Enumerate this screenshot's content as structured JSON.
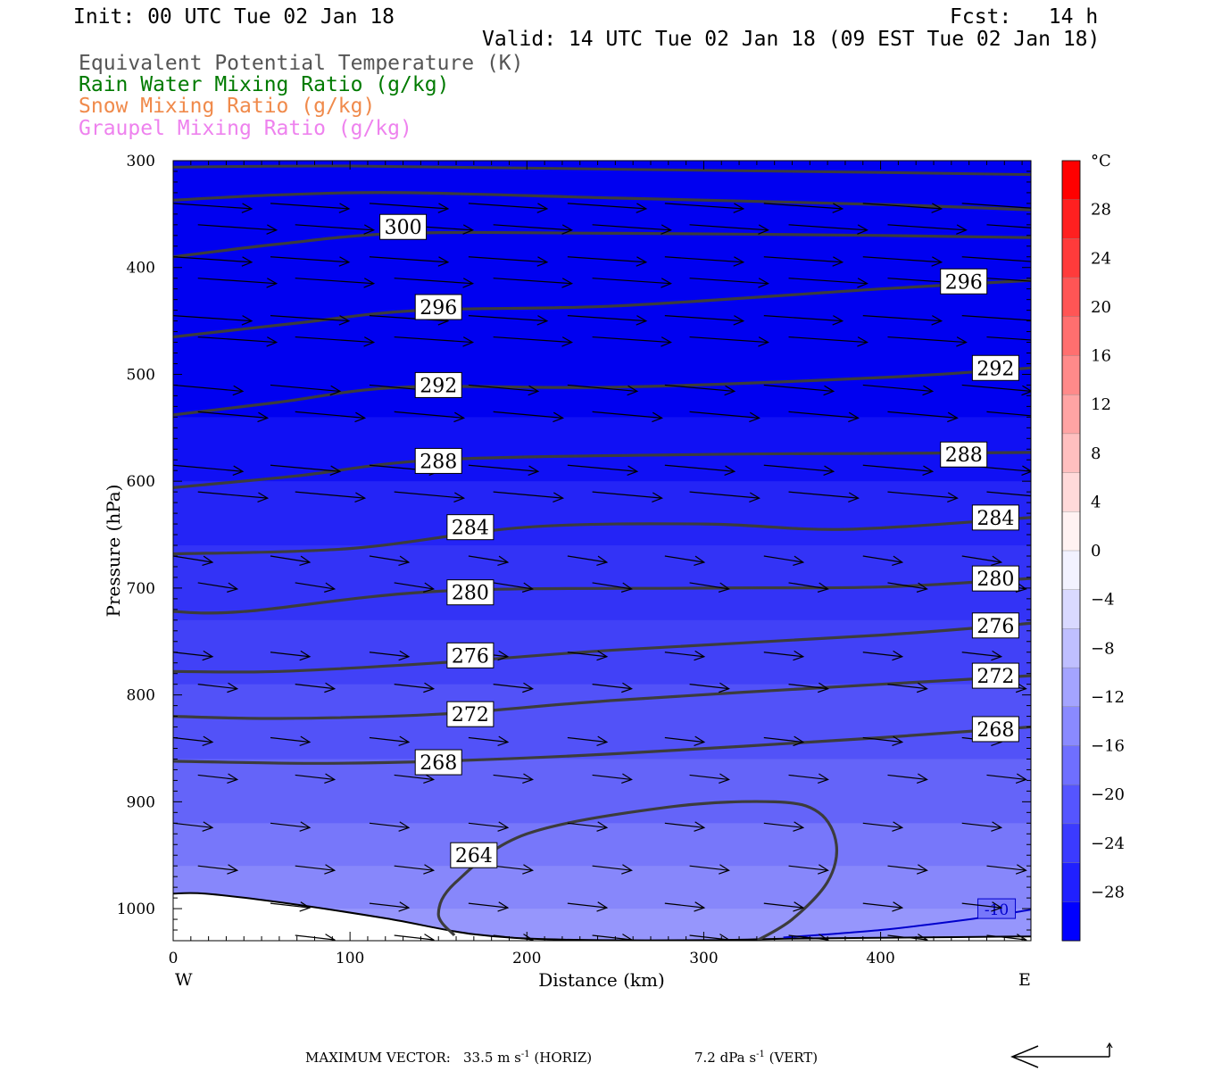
{
  "header": {
    "init": "Init: 00 UTC Tue 02 Jan 18",
    "fcst": "Fcst:   14 h",
    "valid": "Valid: 14 UTC Tue 02 Jan 18 (09 EST Tue 02 Jan 18)"
  },
  "legend": [
    {
      "text": "Equivalent Potential Temperature (K)",
      "color": "#555555"
    },
    {
      "text": "Rain Water Mixing Ratio (g/kg)",
      "color": "#007a00"
    },
    {
      "text": "Snow Mixing Ratio (g/kg)",
      "color": "#f08a4b"
    },
    {
      "text": "Graupel Mixing Ratio (g/kg)",
      "color": "#ee82ee"
    }
  ],
  "footer": {
    "max_vector_label": "MAXIMUM VECTOR:",
    "horiz_value": "33.5",
    "horiz_unit": "m s",
    "horiz_exp": "-1",
    "horiz_tag": "(HORIZ)",
    "vert_value": "7.2",
    "vert_unit": "dPa s",
    "vert_exp": "-1",
    "vert_tag": "(VERT)"
  },
  "chart_data": {
    "type": "cross-section contour",
    "title": "",
    "xlabel": "Distance (km)",
    "ylabel": "Pressure (hPa)",
    "xlim": [
      0,
      485
    ],
    "ylim": [
      1030,
      300
    ],
    "x_ticks": [
      0,
      100,
      200,
      300,
      400
    ],
    "y_ticks": [
      300,
      400,
      500,
      600,
      700,
      800,
      900,
      1000
    ],
    "x_end_labels": {
      "left": "W",
      "right": "E"
    },
    "colorbar": {
      "unit": "°C",
      "ticks": [
        28,
        24,
        20,
        16,
        12,
        8,
        4,
        0,
        -4,
        -8,
        -12,
        -16,
        -20,
        -24,
        -28
      ],
      "colors_top_to_bottom": [
        "#ff0000",
        "#ff2020",
        "#ff3b3b",
        "#ff5555",
        "#ff6f6f",
        "#ff8a8a",
        "#ffa4a4",
        "#ffbfbf",
        "#ffd9d9",
        "#fff2f2",
        "#f2f2ff",
        "#d9d9ff",
        "#bfbfff",
        "#a4a4ff",
        "#8a8aff",
        "#6f6fff",
        "#5555ff",
        "#3b3bff",
        "#2020ff",
        "#0000ff"
      ]
    },
    "temperature_bands_degC": [
      {
        "p_top": 300,
        "p_bottom": 540,
        "value": -30,
        "color": "#0000f0"
      },
      {
        "p_top": 540,
        "p_bottom": 600,
        "value": -26,
        "color": "#1010f4"
      },
      {
        "p_top": 600,
        "p_bottom": 660,
        "value": -22,
        "color": "#2424f6"
      },
      {
        "p_top": 660,
        "p_bottom": 730,
        "value": -18,
        "color": "#3333f6"
      },
      {
        "p_top": 730,
        "p_bottom": 790,
        "value": -16,
        "color": "#4141f7"
      },
      {
        "p_top": 790,
        "p_bottom": 860,
        "value": -14,
        "color": "#5252f8"
      },
      {
        "p_top": 860,
        "p_bottom": 920,
        "value": -12,
        "color": "#6464f9"
      },
      {
        "p_top": 920,
        "p_bottom": 960,
        "value": -10,
        "color": "#7777fa"
      },
      {
        "p_top": 960,
        "p_bottom": 1000,
        "value": -8,
        "color": "#8787fb"
      },
      {
        "p_top": 1000,
        "p_bottom": 1030,
        "value": -6,
        "color": "#9696fc"
      }
    ],
    "temperature_contour_label": "-10",
    "theta_e_contours": [
      {
        "label": "300",
        "points": [
          [
            0,
            337
          ],
          [
            60,
            332
          ],
          [
            130,
            330
          ],
          [
            250,
            335
          ],
          [
            400,
            341
          ],
          [
            485,
            346
          ]
        ]
      },
      {
        "label": "300",
        "points": [
          [
            0,
            390
          ],
          [
            60,
            378
          ],
          [
            130,
            368
          ],
          [
            250,
            368
          ],
          [
            400,
            370
          ],
          [
            485,
            372
          ]
        ]
      },
      {
        "label": "296",
        "points": [
          [
            0,
            465
          ],
          [
            70,
            452
          ],
          [
            140,
            440
          ],
          [
            250,
            436
          ],
          [
            400,
            420
          ],
          [
            485,
            412
          ]
        ]
      },
      {
        "label": "292",
        "points": [
          [
            0,
            538
          ],
          [
            60,
            526
          ],
          [
            130,
            512
          ],
          [
            250,
            512
          ],
          [
            400,
            503
          ],
          [
            485,
            494
          ]
        ]
      },
      {
        "label": "288",
        "points": [
          [
            0,
            606
          ],
          [
            70,
            595
          ],
          [
            150,
            580
          ],
          [
            300,
            575
          ],
          [
            400,
            574
          ],
          [
            485,
            573
          ]
        ]
      },
      {
        "label": "284",
        "points": [
          [
            0,
            668
          ],
          [
            100,
            663
          ],
          [
            200,
            643
          ],
          [
            300,
            640
          ],
          [
            380,
            645
          ],
          [
            485,
            634
          ]
        ]
      },
      {
        "label": "280",
        "points": [
          [
            0,
            722
          ],
          [
            40,
            722
          ],
          [
            150,
            703
          ],
          [
            300,
            700
          ],
          [
            400,
            699
          ],
          [
            485,
            691
          ]
        ]
      },
      {
        "label": "276",
        "points": [
          [
            0,
            778
          ],
          [
            60,
            778
          ],
          [
            150,
            770
          ],
          [
            250,
            758
          ],
          [
            400,
            744
          ],
          [
            485,
            733
          ]
        ]
      },
      {
        "label": "272",
        "points": [
          [
            0,
            820
          ],
          [
            60,
            822
          ],
          [
            150,
            818
          ],
          [
            250,
            805
          ],
          [
            400,
            790
          ],
          [
            485,
            782
          ]
        ]
      },
      {
        "label": "268",
        "points": [
          [
            0,
            862
          ],
          [
            80,
            864
          ],
          [
            150,
            862
          ],
          [
            250,
            855
          ],
          [
            400,
            840
          ],
          [
            485,
            830
          ]
        ]
      },
      {
        "label": "264",
        "points": [
          [
            159,
            1025
          ],
          [
            150,
            1005
          ],
          [
            160,
            975
          ],
          [
            200,
            930
          ],
          [
            280,
            905
          ],
          [
            340,
            900
          ],
          [
            365,
            910
          ],
          [
            375,
            940
          ],
          [
            370,
            975
          ],
          [
            350,
            1010
          ],
          [
            330,
            1030
          ]
        ]
      }
    ],
    "theta_e_labels": [
      {
        "text": "300",
        "x": 130,
        "p": 362
      },
      {
        "text": "296",
        "x": 150,
        "p": 437
      },
      {
        "text": "296",
        "x": 447,
        "p": 413
      },
      {
        "text": "292",
        "x": 150,
        "p": 510
      },
      {
        "text": "292",
        "x": 465,
        "p": 494
      },
      {
        "text": "288",
        "x": 150,
        "p": 581
      },
      {
        "text": "288",
        "x": 447,
        "p": 575
      },
      {
        "text": "284",
        "x": 168,
        "p": 643
      },
      {
        "text": "284",
        "x": 465,
        "p": 634
      },
      {
        "text": "280",
        "x": 168,
        "p": 704
      },
      {
        "text": "280",
        "x": 465,
        "p": 691
      },
      {
        "text": "276",
        "x": 168,
        "p": 763
      },
      {
        "text": "276",
        "x": 465,
        "p": 735
      },
      {
        "text": "272",
        "x": 168,
        "p": 818
      },
      {
        "text": "272",
        "x": 465,
        "p": 782
      },
      {
        "text": "268",
        "x": 150,
        "p": 863
      },
      {
        "text": "268",
        "x": 465,
        "p": 832
      },
      {
        "text": "264",
        "x": 170,
        "p": 950
      }
    ]
  }
}
